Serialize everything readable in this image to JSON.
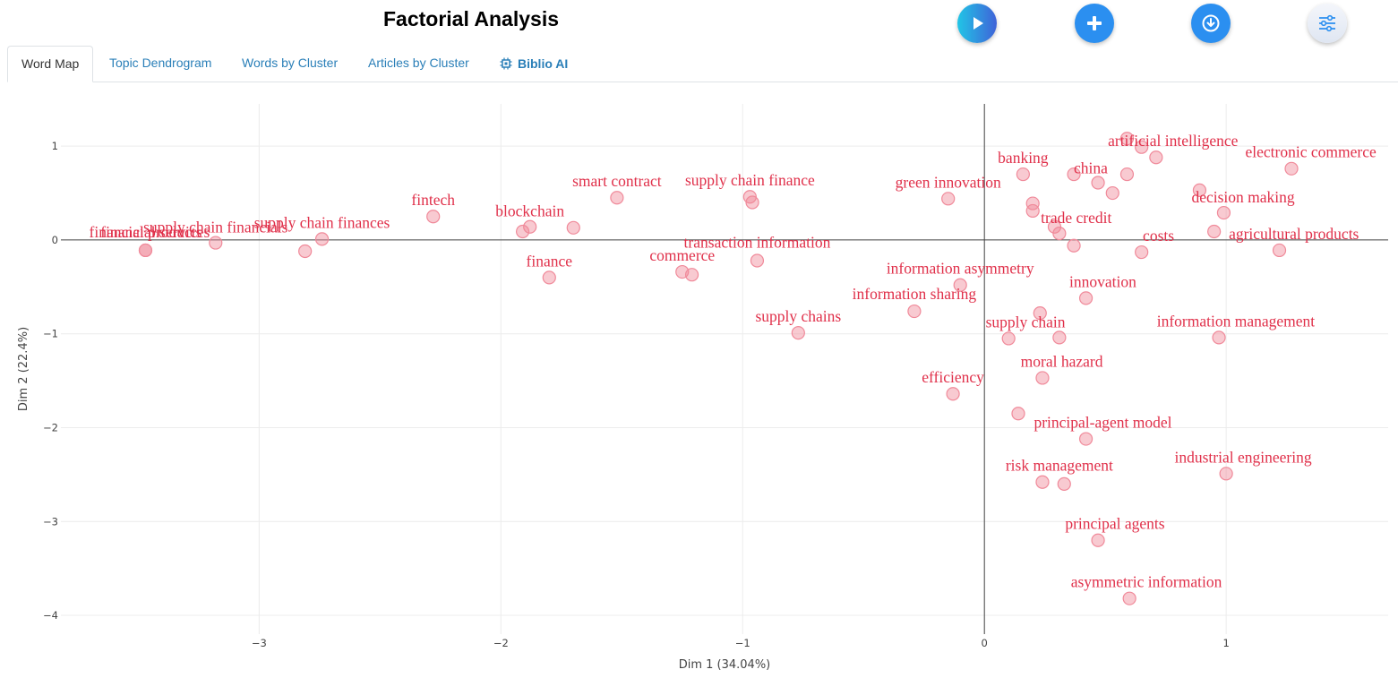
{
  "header": {
    "title": "Factorial Analysis"
  },
  "toolbar": {
    "run_icon": "play-icon",
    "add_icon": "plus-icon",
    "download_icon": "download-icon",
    "options_icon": "sliders-icon"
  },
  "tabs": [
    {
      "label": "Word Map",
      "active": true
    },
    {
      "label": "Topic Dendrogram",
      "active": false
    },
    {
      "label": "Words by Cluster",
      "active": false
    },
    {
      "label": "Articles by Cluster",
      "active": false
    },
    {
      "label": "Biblio AI",
      "active": false,
      "icon": "chip-icon"
    }
  ],
  "colors": {
    "point": "#f08a9a",
    "label": "#e0304a",
    "link": "#2a7fb8",
    "accent": "#2b8ff0"
  },
  "chart_data": {
    "type": "scatter",
    "title": "",
    "xlabel": "Dim 1 (34.04%)",
    "ylabel": "Dim 2 (22.4%)",
    "xlim": [
      -3.82,
      1.67
    ],
    "ylim": [
      -4.2,
      1.45
    ],
    "xticks": [
      -3,
      -2,
      -1,
      0,
      1
    ],
    "yticks": [
      1,
      0,
      -1,
      -2,
      -3,
      -4
    ],
    "xtick_labels": [
      "−3",
      "−2",
      "−1",
      "0",
      "1"
    ],
    "ytick_labels": [
      "1",
      "0",
      "−1",
      "−2",
      "−3",
      "−4"
    ],
    "grid": true,
    "points": [
      {
        "label": "financial products",
        "x": -3.47,
        "y": -0.11,
        "lx": -3.47,
        "ly": 0.03
      },
      {
        "label": "financial services",
        "x": -3.47,
        "y": -0.11,
        "lx": -3.43,
        "ly": 0.03
      },
      {
        "label": "supply chain financials",
        "x": -3.18,
        "y": -0.03,
        "lx": -3.18,
        "ly": 0.08
      },
      {
        "label": "",
        "x": -2.81,
        "y": -0.12
      },
      {
        "label": "supply chain finances",
        "x": -2.74,
        "y": 0.01,
        "lx": -2.74,
        "ly": 0.13
      },
      {
        "label": "fintech",
        "x": -2.28,
        "y": 0.25,
        "lx": -2.28,
        "ly": 0.37
      },
      {
        "label": "blockchain",
        "x": -1.88,
        "y": 0.14,
        "lx": -1.88,
        "ly": 0.25
      },
      {
        "label": "",
        "x": -1.91,
        "y": 0.09
      },
      {
        "label": "",
        "x": -1.7,
        "y": 0.13
      },
      {
        "label": "finance",
        "x": -1.8,
        "y": -0.4,
        "lx": -1.8,
        "ly": -0.28
      },
      {
        "label": "smart contract",
        "x": -1.52,
        "y": 0.45,
        "lx": -1.52,
        "ly": 0.57
      },
      {
        "label": "commerce",
        "x": -1.25,
        "y": -0.34,
        "lx": -1.25,
        "ly": -0.22
      },
      {
        "label": "",
        "x": -1.21,
        "y": -0.37
      },
      {
        "label": "supply chain finance",
        "x": -0.97,
        "y": 0.46,
        "lx": -0.97,
        "ly": 0.58
      },
      {
        "label": "",
        "x": -0.96,
        "y": 0.4
      },
      {
        "label": "transaction information",
        "x": -0.94,
        "y": -0.22,
        "lx": -0.94,
        "ly": -0.08
      },
      {
        "label": "supply chains",
        "x": -0.77,
        "y": -0.99,
        "lx": -0.77,
        "ly": -0.87
      },
      {
        "label": "information sharing",
        "x": -0.29,
        "y": -0.76,
        "lx": -0.29,
        "ly": -0.63
      },
      {
        "label": "green innovation",
        "x": -0.15,
        "y": 0.44,
        "lx": -0.15,
        "ly": 0.56
      },
      {
        "label": "information asymmetry",
        "x": -0.1,
        "y": -0.48,
        "lx": -0.1,
        "ly": -0.36
      },
      {
        "label": "efficiency",
        "x": -0.13,
        "y": -1.64,
        "lx": -0.13,
        "ly": -1.52
      },
      {
        "label": "",
        "x": 0.14,
        "y": -1.85
      },
      {
        "label": "banking",
        "x": 0.16,
        "y": 0.7,
        "lx": 0.16,
        "ly": 0.82
      },
      {
        "label": "",
        "x": 0.2,
        "y": 0.39
      },
      {
        "label": "",
        "x": 0.2,
        "y": 0.31
      },
      {
        "label": "trade credit",
        "x": 0.29,
        "y": 0.14,
        "lx": 0.38,
        "ly": 0.18
      },
      {
        "label": "",
        "x": 0.31,
        "y": 0.07
      },
      {
        "label": "",
        "x": 0.37,
        "y": -0.06
      },
      {
        "label": "",
        "x": 0.23,
        "y": -0.78
      },
      {
        "label": "supply chain",
        "x": 0.1,
        "y": -1.05,
        "lx": 0.17,
        "ly": -0.93
      },
      {
        "label": "",
        "x": 0.31,
        "y": -1.04
      },
      {
        "label": "moral hazard",
        "x": 0.24,
        "y": -1.47,
        "lx": 0.32,
        "ly": -1.35
      },
      {
        "label": "principal-agent model",
        "x": 0.42,
        "y": -2.12,
        "lx": 0.49,
        "ly": -2.0
      },
      {
        "label": "risk management",
        "x": 0.24,
        "y": -2.58,
        "lx": 0.31,
        "ly": -2.46
      },
      {
        "label": "",
        "x": 0.33,
        "y": -2.6
      },
      {
        "label": "principal agents",
        "x": 0.47,
        "y": -3.2,
        "lx": 0.54,
        "ly": -3.08
      },
      {
        "label": "asymmetric information",
        "x": 0.6,
        "y": -3.82,
        "lx": 0.67,
        "ly": -3.7
      },
      {
        "label": "china",
        "x": 0.59,
        "y": 0.7,
        "lx": 0.44,
        "ly": 0.71
      },
      {
        "label": "",
        "x": 0.37,
        "y": 0.7
      },
      {
        "label": "",
        "x": 0.47,
        "y": 0.61
      },
      {
        "label": "",
        "x": 0.53,
        "y": 0.5
      },
      {
        "label": "artificial intelligence",
        "x": 0.59,
        "y": 1.08,
        "lx": 0.78,
        "ly": 1.0
      },
      {
        "label": "",
        "x": 0.65,
        "y": 0.99
      },
      {
        "label": "",
        "x": 0.71,
        "y": 0.88
      },
      {
        "label": "innovation",
        "x": 0.42,
        "y": -0.62,
        "lx": 0.49,
        "ly": -0.5
      },
      {
        "label": "costs",
        "x": 0.65,
        "y": -0.13,
        "lx": 0.72,
        "ly": -0.01
      },
      {
        "label": "decision making",
        "x": 0.89,
        "y": 0.53,
        "lx": 1.07,
        "ly": 0.4
      },
      {
        "label": "",
        "x": 0.99,
        "y": 0.29
      },
      {
        "label": "agricultural products",
        "x": 0.95,
        "y": 0.09,
        "lx": 1.28,
        "ly": 0.01
      },
      {
        "label": "",
        "x": 1.22,
        "y": -0.11
      },
      {
        "label": "electronic commerce",
        "x": 1.27,
        "y": 0.76,
        "lx": 1.35,
        "ly": 0.88
      },
      {
        "label": "information management",
        "x": 0.97,
        "y": -1.04,
        "lx": 1.04,
        "ly": -0.92
      },
      {
        "label": "industrial engineering",
        "x": 1.0,
        "y": -2.49,
        "lx": 1.07,
        "ly": -2.37
      }
    ]
  }
}
